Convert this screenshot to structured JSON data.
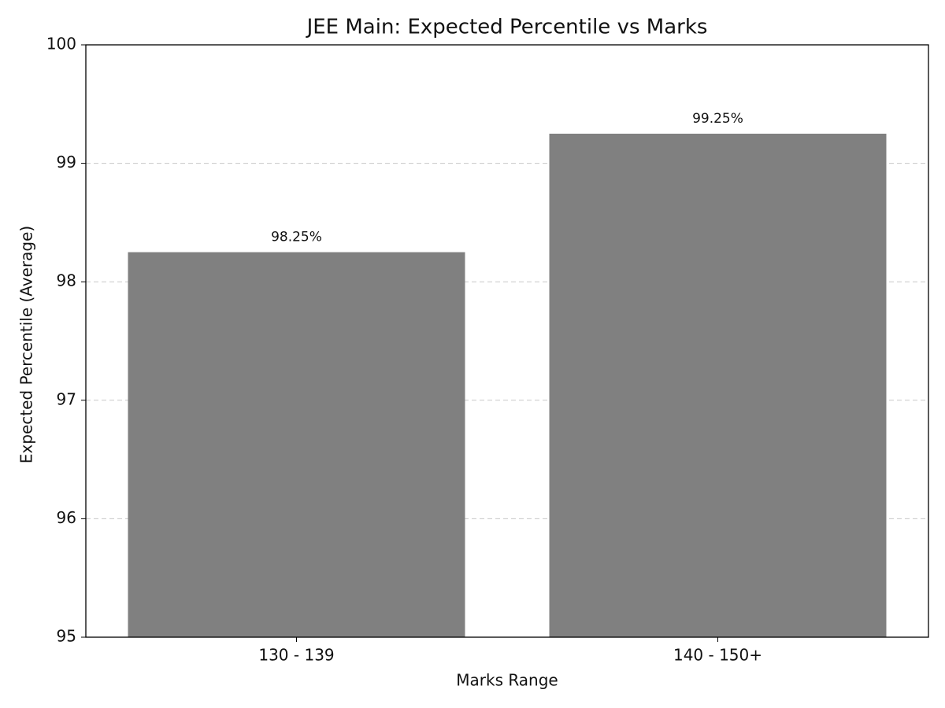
{
  "chart_data": {
    "type": "bar",
    "title": "JEE Main: Expected Percentile vs Marks",
    "x_label": "Marks Range",
    "y_label": "Expected Percentile (Average)",
    "categories": [
      "130 - 139",
      "140 - 150+"
    ],
    "values": [
      98.25,
      99.25
    ],
    "value_labels": [
      "98.25%",
      "99.25%"
    ],
    "color": "#808080",
    "ylim": [
      95,
      100
    ],
    "yticks": [
      95,
      96,
      97,
      98,
      99,
      100
    ],
    "grid": true
  }
}
